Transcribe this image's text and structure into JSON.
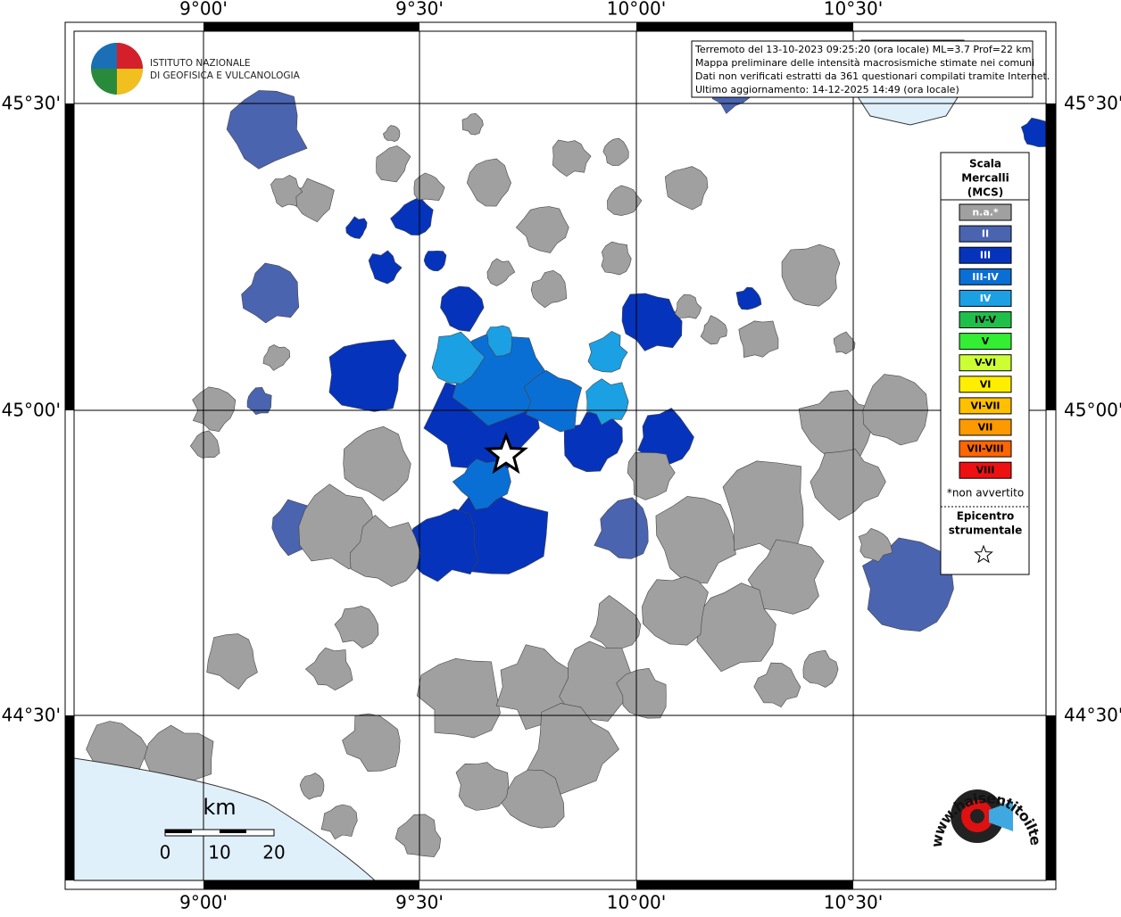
{
  "grid_labels": {
    "top": [
      "9°00'",
      "9°30'",
      "10°00'",
      "10°30'"
    ],
    "bottom": [
      "9°00'",
      "9°30'",
      "10°00'",
      "10°30'"
    ],
    "left": [
      "45°30'",
      "45°00'",
      "44°30'"
    ],
    "right": [
      "45°30'",
      "45°00'",
      "44°30'"
    ]
  },
  "logo": {
    "line1": "ISTITUTO NAZIONALE",
    "line2": "DI GEOFISICA E VULCANOLOGIA"
  },
  "info_box": [
    "Terremoto del 13-10-2023 09:25:20 (ora locale) ML=3.7 Prof=22 km",
    "Mappa preliminare delle intensità macrosismiche stimate nei comuni",
    "Dati non verificati estratti da 361 questionari compilati tramite Internet.",
    "Ultimo aggiornamento: 14-12-2025 14:49 (ora locale)"
  ],
  "legend": {
    "title": [
      "Scala",
      "Mercalli",
      "(MCS)"
    ],
    "entries": [
      {
        "label": "n.a.*",
        "color": "#a0a0a0"
      },
      {
        "label": "II",
        "color": "#4a64b0"
      },
      {
        "label": "III",
        "color": "#0533bb"
      },
      {
        "label": "III-IV",
        "color": "#0a6fd4"
      },
      {
        "label": "IV",
        "color": "#1ba0e3"
      },
      {
        "label": "IV-V",
        "color": "#1fbf4a"
      },
      {
        "label": "V",
        "color": "#33ee33"
      },
      {
        "label": "V-VI",
        "color": "#ccff33"
      },
      {
        "label": "VI",
        "color": "#ffee00"
      },
      {
        "label": "VI-VII",
        "color": "#ffc000"
      },
      {
        "label": "VII",
        "color": "#ff9900"
      },
      {
        "label": "VII-VIII",
        "color": "#ff6600"
      },
      {
        "label": "VIII",
        "color": "#ee1111"
      }
    ],
    "note": "*non avvertito",
    "epicenter": [
      "Epicentro",
      "strumentale"
    ]
  },
  "scale_bar": {
    "unit": "km",
    "labels": [
      "0",
      "10",
      "20"
    ]
  },
  "site_logo": "www.haisentitoilterremoto.it"
}
